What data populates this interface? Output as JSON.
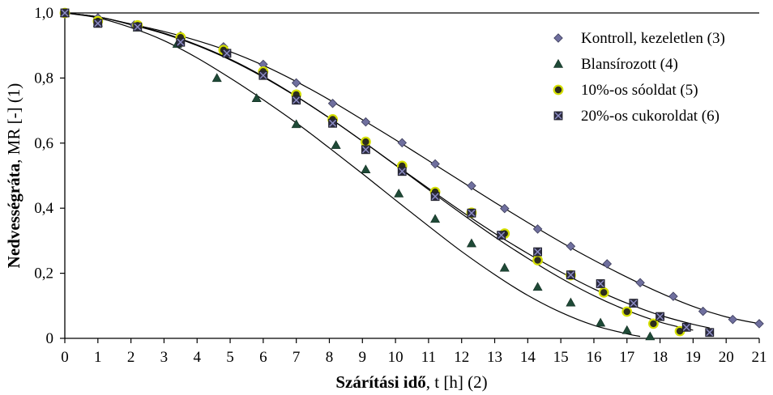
{
  "chart_data": {
    "type": "scatter",
    "title": "",
    "xlabel": {
      "bold": "Szárítási idő",
      "rest": ", t [h] (2)"
    },
    "ylabel": {
      "bold": "Nedvességráta",
      "rest": ", MR [-] (1)"
    },
    "xlim": [
      0,
      21
    ],
    "ylim": [
      0,
      1
    ],
    "xticks": [
      0,
      1,
      2,
      3,
      4,
      5,
      6,
      7,
      8,
      9,
      10,
      11,
      12,
      13,
      14,
      15,
      16,
      17,
      18,
      19,
      20,
      21
    ],
    "x_tick_labels": [
      "0",
      "1",
      "2",
      "3",
      "4",
      "5",
      "6",
      "7",
      "8",
      "9",
      "10",
      "11",
      "12",
      "13",
      "14",
      "15",
      "16",
      "17",
      "18",
      "19",
      "20",
      "21"
    ],
    "yticks": [
      0,
      0.2,
      0.4,
      0.6,
      0.8,
      1.0
    ],
    "y_tick_labels": [
      "0",
      "0,2",
      "0,4",
      "0,6",
      "0,8",
      "1,0"
    ],
    "grid": false,
    "legend_position": "top-right",
    "series": [
      {
        "name": "Kontroll, kezeletlen (3)",
        "marker": "diamond",
        "color": "#6f6f9e",
        "points": [
          [
            0,
            1.0
          ],
          [
            1,
            0.985
          ],
          [
            2.1,
            0.963
          ],
          [
            3.5,
            0.93
          ],
          [
            4.8,
            0.896
          ],
          [
            6,
            0.842
          ],
          [
            7,
            0.785
          ],
          [
            8.1,
            0.722
          ],
          [
            9.1,
            0.665
          ],
          [
            10.2,
            0.601
          ],
          [
            11.2,
            0.536
          ],
          [
            12.3,
            0.469
          ],
          [
            13.3,
            0.399
          ],
          [
            14.3,
            0.336
          ],
          [
            15.3,
            0.283
          ],
          [
            16.4,
            0.229
          ],
          [
            17.4,
            0.171
          ],
          [
            18.4,
            0.129
          ],
          [
            19.3,
            0.083
          ],
          [
            20.2,
            0.058
          ],
          [
            21,
            0.045
          ]
        ],
        "fit": [
          [
            0,
            1.0
          ],
          [
            1,
            0.988
          ],
          [
            2,
            0.966
          ],
          [
            3,
            0.943
          ],
          [
            4,
            0.915
          ],
          [
            5,
            0.881
          ],
          [
            6,
            0.839
          ],
          [
            7,
            0.789
          ],
          [
            8,
            0.733
          ],
          [
            9,
            0.672
          ],
          [
            10,
            0.61
          ],
          [
            11,
            0.546
          ],
          [
            12,
            0.482
          ],
          [
            13,
            0.418
          ],
          [
            14,
            0.356
          ],
          [
            15,
            0.296
          ],
          [
            16,
            0.24
          ],
          [
            17,
            0.188
          ],
          [
            18,
            0.14
          ],
          [
            19,
            0.098
          ],
          [
            20,
            0.066
          ],
          [
            21,
            0.045
          ]
        ]
      },
      {
        "name": "Blansírozott (4)",
        "marker": "triangle",
        "color": "#1f4a37",
        "points": [
          [
            0,
            1.0
          ],
          [
            1,
            0.97
          ],
          [
            2.2,
            0.955
          ],
          [
            3.4,
            0.905
          ],
          [
            4.6,
            0.8
          ],
          [
            5.8,
            0.738
          ],
          [
            7,
            0.658
          ],
          [
            8.2,
            0.594
          ],
          [
            9.1,
            0.519
          ],
          [
            10.1,
            0.445
          ],
          [
            11.2,
            0.367
          ],
          [
            12.3,
            0.292
          ],
          [
            13.3,
            0.217
          ],
          [
            14.3,
            0.158
          ],
          [
            15.3,
            0.11
          ],
          [
            16.2,
            0.048
          ],
          [
            17,
            0.025
          ],
          [
            17.7,
            0.006
          ]
        ],
        "fit": [
          [
            0,
            1.0
          ],
          [
            1,
            0.985
          ],
          [
            2,
            0.955
          ],
          [
            3,
            0.915
          ],
          [
            4,
            0.862
          ],
          [
            5,
            0.8
          ],
          [
            6,
            0.733
          ],
          [
            7,
            0.662
          ],
          [
            8,
            0.585
          ],
          [
            9,
            0.506
          ],
          [
            10,
            0.425
          ],
          [
            11,
            0.345
          ],
          [
            12,
            0.267
          ],
          [
            13,
            0.196
          ],
          [
            14,
            0.132
          ],
          [
            15,
            0.08
          ],
          [
            16,
            0.04
          ],
          [
            17,
            0.014
          ],
          [
            17.4,
            0.006
          ]
        ]
      },
      {
        "name": "10%-os sóoldat (5)",
        "marker": "circle",
        "color": "#2d2d1e",
        "edge": "#d4df00",
        "points": [
          [
            0,
            1.0
          ],
          [
            1,
            0.975
          ],
          [
            2.2,
            0.962
          ],
          [
            3.5,
            0.925
          ],
          [
            4.8,
            0.886
          ],
          [
            6,
            0.82
          ],
          [
            7,
            0.749
          ],
          [
            8.1,
            0.673
          ],
          [
            9.1,
            0.604
          ],
          [
            10.2,
            0.53
          ],
          [
            11.2,
            0.45
          ],
          [
            12.3,
            0.386
          ],
          [
            13.3,
            0.322
          ],
          [
            14.3,
            0.24
          ],
          [
            15.3,
            0.194
          ],
          [
            16.3,
            0.141
          ],
          [
            17,
            0.082
          ],
          [
            17.8,
            0.045
          ],
          [
            18.6,
            0.022
          ]
        ],
        "fit": [
          [
            0,
            1.0
          ],
          [
            1,
            0.988
          ],
          [
            2,
            0.965
          ],
          [
            3,
            0.938
          ],
          [
            4,
            0.902
          ],
          [
            5,
            0.858
          ],
          [
            6,
            0.805
          ],
          [
            7,
            0.744
          ],
          [
            8,
            0.677
          ],
          [
            9,
            0.606
          ],
          [
            10,
            0.532
          ],
          [
            11,
            0.457
          ],
          [
            12,
            0.383
          ],
          [
            13,
            0.312
          ],
          [
            14,
            0.246
          ],
          [
            15,
            0.185
          ],
          [
            16,
            0.131
          ],
          [
            17,
            0.086
          ],
          [
            18,
            0.05
          ],
          [
            19,
            0.025
          ]
        ]
      },
      {
        "name": "20%-os cukoroldat (6)",
        "marker": "square-x",
        "color": "#2d2d40",
        "points": [
          [
            0,
            1.0
          ],
          [
            1,
            0.968
          ],
          [
            2.2,
            0.957
          ],
          [
            3.5,
            0.91
          ],
          [
            4.9,
            0.876
          ],
          [
            6,
            0.808
          ],
          [
            7,
            0.732
          ],
          [
            8.1,
            0.661
          ],
          [
            9.1,
            0.58
          ],
          [
            10.2,
            0.513
          ],
          [
            11.2,
            0.436
          ],
          [
            12.3,
            0.385
          ],
          [
            13.2,
            0.317
          ],
          [
            14.3,
            0.266
          ],
          [
            15.3,
            0.195
          ],
          [
            16.2,
            0.168
          ],
          [
            17.2,
            0.108
          ],
          [
            18,
            0.067
          ],
          [
            18.8,
            0.034
          ],
          [
            19.5,
            0.018
          ]
        ],
        "fit": [
          [
            0,
            1.0
          ],
          [
            1,
            0.988
          ],
          [
            2,
            0.964
          ],
          [
            3,
            0.936
          ],
          [
            4,
            0.9
          ],
          [
            5,
            0.856
          ],
          [
            6,
            0.803
          ],
          [
            7,
            0.743
          ],
          [
            8,
            0.677
          ],
          [
            9,
            0.606
          ],
          [
            10,
            0.533
          ],
          [
            11,
            0.461
          ],
          [
            12,
            0.39
          ],
          [
            13,
            0.323
          ],
          [
            14,
            0.261
          ],
          [
            15,
            0.204
          ],
          [
            16,
            0.152
          ],
          [
            17,
            0.108
          ],
          [
            18,
            0.071
          ],
          [
            19,
            0.043
          ],
          [
            19.5,
            0.032
          ]
        ]
      }
    ]
  }
}
